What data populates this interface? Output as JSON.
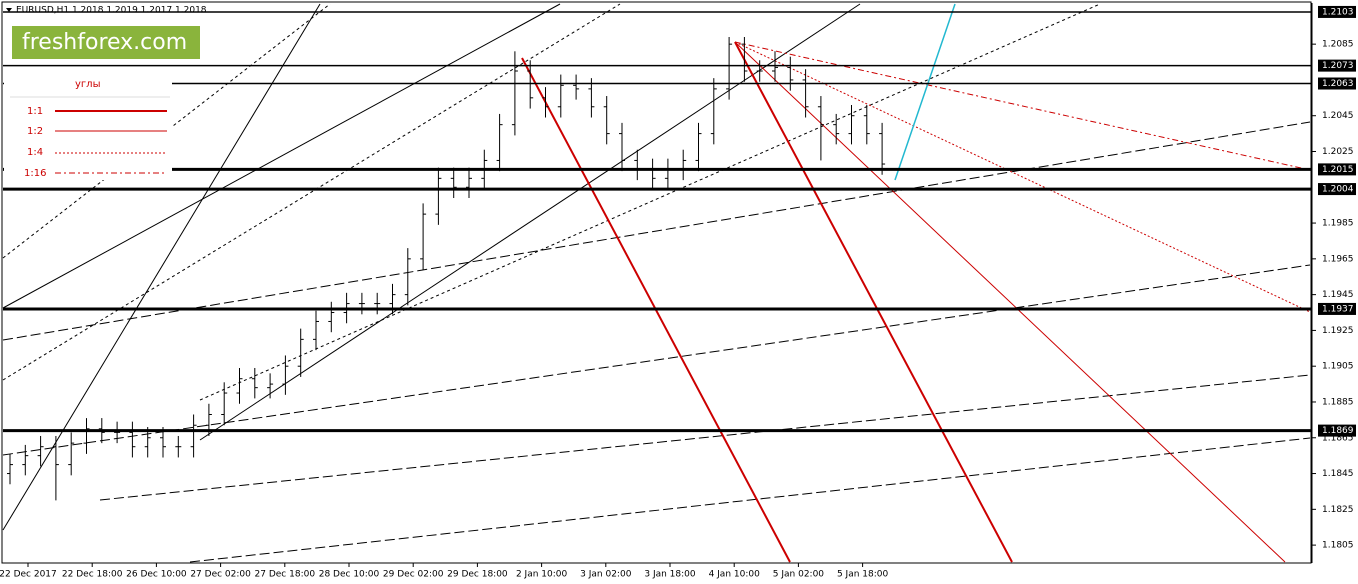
{
  "chart_data": {
    "type": "ohlc",
    "title": "EURUSD,H1  1.2018 1.2019 1.2017 1.2018",
    "logo": "freshforex.com",
    "legend": {
      "title": "углы",
      "items": [
        "1:1",
        "1:2",
        "1:4",
        "1:16"
      ]
    },
    "ylim": [
      1.1795,
      1.2108
    ],
    "yticks": [
      1.2085,
      1.2045,
      1.2025,
      1.1985,
      1.1965,
      1.1945,
      1.1925,
      1.1905,
      1.1885,
      1.1865,
      1.1845,
      1.1825,
      1.1805
    ],
    "levels": [
      1.2103,
      1.2073,
      1.2063,
      1.2015,
      1.2004,
      1.1937,
      1.1869
    ],
    "x_labels": [
      "22 Dec 2017",
      "22 Dec 18:00",
      "26 Dec 10:00",
      "27 Dec 02:00",
      "27 Dec 18:00",
      "28 Dec 10:00",
      "29 Dec 02:00",
      "29 Dec 18:00",
      "2 Jan 10:00",
      "3 Jan 02:00",
      "3 Jan 18:00",
      "4 Jan 10:00",
      "5 Jan 02:00",
      "5 Jan 18:00"
    ],
    "color": "#000000",
    "open": [
      1.1845,
      1.185,
      1.1855,
      1.186,
      1.185,
      1.1862,
      1.187,
      1.1868,
      1.1868,
      1.186,
      1.1865,
      1.186,
      1.186,
      1.1872,
      1.1878,
      1.189,
      1.1898,
      1.1893,
      1.1895,
      1.1905,
      1.192,
      1.193,
      1.1935,
      1.194,
      1.194,
      1.194,
      1.1945,
      1.1965,
      1.199,
      1.201,
      1.2005,
      1.201,
      1.202,
      1.204,
      1.207,
      1.2055,
      1.205,
      1.2062,
      1.206,
      1.205,
      1.2035,
      1.202,
      1.2015,
      1.201,
      1.2015,
      1.202,
      1.2035,
      1.206,
      1.2085,
      1.207,
      1.207,
      1.2072,
      1.2065,
      1.205,
      1.204,
      1.2035,
      1.2045,
      1.2035
    ],
    "high": [
      1.1856,
      1.1861,
      1.1866,
      1.1866,
      1.1868,
      1.1876,
      1.1876,
      1.1874,
      1.1874,
      1.1871,
      1.1871,
      1.1866,
      1.1878,
      1.1884,
      1.1896,
      1.1904,
      1.1904,
      1.1901,
      1.1911,
      1.1926,
      1.1936,
      1.1941,
      1.1946,
      1.1946,
      1.1946,
      1.1951,
      1.1971,
      1.1996,
      1.2016,
      1.2016,
      1.2016,
      1.2026,
      1.2046,
      1.2081,
      1.2076,
      1.2061,
      1.2068,
      1.2068,
      1.2066,
      1.2056,
      1.2041,
      1.2026,
      1.2021,
      1.2021,
      1.2026,
      1.2041,
      1.2066,
      1.2089,
      1.2089,
      1.2076,
      1.2081,
      1.2078,
      1.2071,
      1.2056,
      1.2046,
      1.2051,
      1.2051,
      1.2041
    ],
    "low": [
      1.1839,
      1.1844,
      1.1849,
      1.183,
      1.1844,
      1.1856,
      1.1862,
      1.1862,
      1.1854,
      1.1854,
      1.1854,
      1.1854,
      1.1854,
      1.1866,
      1.1872,
      1.1884,
      1.1887,
      1.1887,
      1.1889,
      1.1899,
      1.1914,
      1.1924,
      1.1929,
      1.1934,
      1.1934,
      1.1934,
      1.1939,
      1.1959,
      1.1984,
      1.1999,
      1.1999,
      1.2004,
      1.2014,
      1.2034,
      1.2049,
      1.2044,
      1.2044,
      1.2054,
      1.2044,
      1.2029,
      1.2014,
      1.2009,
      1.2004,
      1.2004,
      1.2009,
      1.2014,
      1.2029,
      1.2054,
      1.2064,
      1.2064,
      1.2064,
      1.2059,
      1.2044,
      1.202,
      1.2029,
      1.2029,
      1.2029,
      1.2012
    ],
    "close": [
      1.185,
      1.1855,
      1.186,
      1.185,
      1.1862,
      1.187,
      1.1868,
      1.1868,
      1.186,
      1.1865,
      1.186,
      1.186,
      1.1872,
      1.1878,
      1.189,
      1.1898,
      1.1893,
      1.1895,
      1.1905,
      1.192,
      1.193,
      1.1935,
      1.194,
      1.194,
      1.194,
      1.1945,
      1.1965,
      1.199,
      1.201,
      1.2005,
      1.201,
      1.202,
      1.204,
      1.207,
      1.2055,
      1.205,
      1.2062,
      1.206,
      1.205,
      1.2035,
      1.202,
      1.2015,
      1.201,
      1.2015,
      1.202,
      1.2035,
      1.206,
      1.2085,
      1.207,
      1.207,
      1.2072,
      1.2065,
      1.205,
      1.204,
      1.2035,
      1.2045,
      1.2035,
      1.2018
    ]
  }
}
